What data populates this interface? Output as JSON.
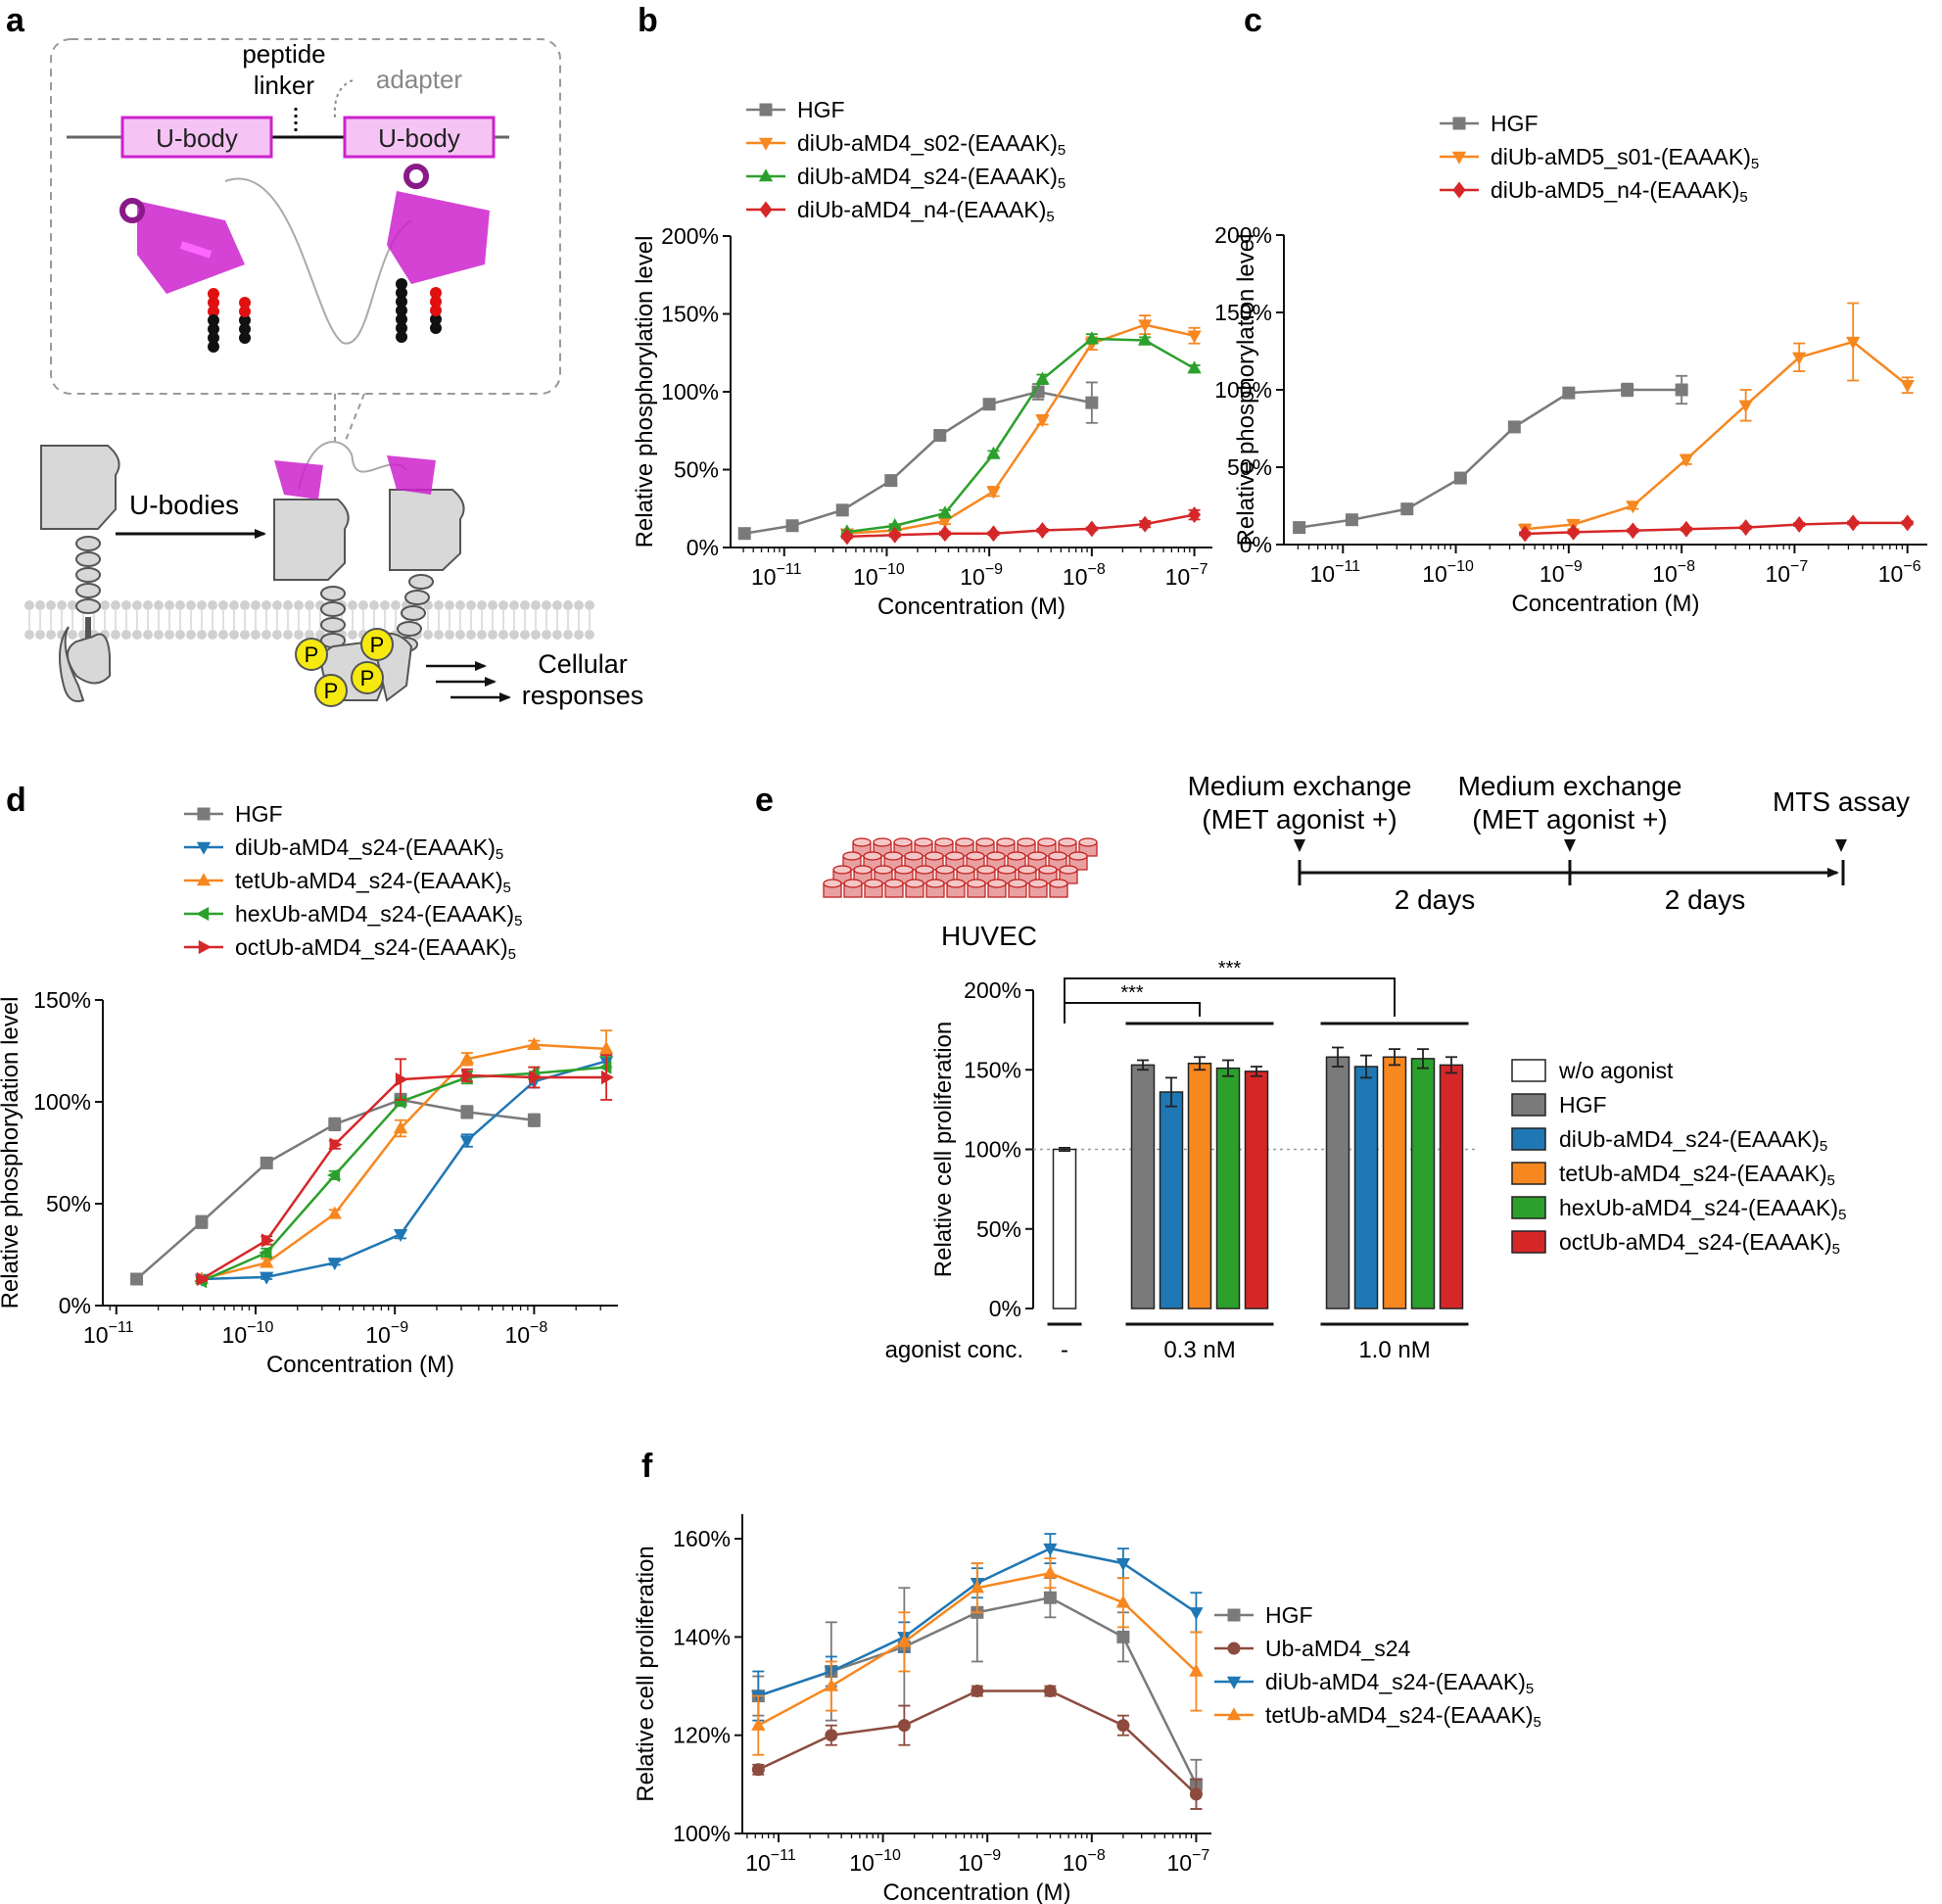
{
  "figure_labels": {
    "a": "a",
    "b": "b",
    "c": "c",
    "d": "d",
    "e": "e",
    "f": "f"
  },
  "colors": {
    "HGF": "#7a7a7a",
    "orange": "#f7871f",
    "green": "#2ca02c",
    "red": "#d62728",
    "blue": "#1f77b4",
    "brown": "#8c4b3e",
    "magenta": "#cc22cc",
    "phospho": "#f5e90f"
  },
  "panel_a": {
    "peptide_linker": "peptide linker",
    "adapter": "adapter",
    "ubody_1": "U-body",
    "ubody_2": "U-body",
    "arrow_label": "U-bodies",
    "phospho": [
      "P",
      "P",
      "P",
      "P"
    ],
    "cellular_responses": "Cellular responses"
  },
  "chart_data": [
    {
      "id": "b",
      "type": "line",
      "xlabel": "Concentration (M)",
      "ylabel": "Relative phosphorylation level",
      "xscale": "log",
      "xlim": [
        3e-12,
        1.5e-07
      ],
      "ylim": [
        0,
        200
      ],
      "yticks": [
        0,
        50,
        100,
        150,
        200
      ],
      "ytick_labels": [
        "0%",
        "50%",
        "100%",
        "150%",
        "200%"
      ],
      "xtick_exponents": [
        "-11",
        "-10",
        "-9",
        "-8",
        "-7"
      ],
      "legend": "top-left",
      "series": [
        {
          "name": "HGF",
          "color": "#7a7a7a",
          "marker": "square",
          "x": [
            4.1e-12,
            1.2e-11,
            3.7e-11,
            1.1e-10,
            3.3e-10,
            1e-09,
            3e-09,
            1e-08
          ],
          "y": [
            9,
            14,
            24,
            43,
            72,
            92,
            100,
            93
          ],
          "err": [
            1,
            1,
            2,
            2,
            2,
            2,
            5,
            13
          ]
        },
        {
          "name": "diUb-aMD4_s02-(EAAAK)5",
          "color": "#f7871f",
          "marker": "triangle-down",
          "x": [
            4.1e-11,
            1.2e-10,
            3.7e-10,
            1.1e-09,
            3.3e-09,
            1e-08,
            3.3e-08,
            1e-07
          ],
          "y": [
            9,
            11,
            17,
            36,
            82,
            131,
            143,
            136
          ],
          "err": [
            1,
            1,
            2,
            3,
            3,
            4,
            6,
            5
          ]
        },
        {
          "name": "diUb-aMD4_s24-(EAAAK)5",
          "color": "#2ca02c",
          "marker": "triangle-up",
          "x": [
            4.1e-11,
            1.2e-10,
            3.7e-10,
            1.1e-09,
            3.3e-09,
            1e-08,
            3.3e-08,
            1e-07
          ],
          "y": [
            10,
            14,
            22,
            60,
            108,
            134,
            133,
            115
          ],
          "err": [
            1,
            1,
            2,
            2,
            3,
            3,
            2,
            2
          ]
        },
        {
          "name": "diUb-aMD4_n4-(EAAAK)5",
          "color": "#d62728",
          "marker": "diamond",
          "x": [
            4.1e-11,
            1.2e-10,
            3.7e-10,
            1.1e-09,
            3.3e-09,
            1e-08,
            3.3e-08,
            1e-07
          ],
          "y": [
            7,
            8,
            9,
            9,
            11,
            12,
            15,
            21
          ],
          "err": [
            1,
            1,
            1,
            1,
            1,
            1,
            2,
            3
          ]
        }
      ]
    },
    {
      "id": "c",
      "type": "line",
      "xlabel": "Concentration (M)",
      "ylabel": "Relative phosphorylation level",
      "xscale": "log",
      "xlim": [
        3e-12,
        1.5e-06
      ],
      "ylim": [
        0,
        200
      ],
      "yticks": [
        0,
        50,
        100,
        150,
        200
      ],
      "ytick_labels": [
        "0%",
        "50%",
        "100%",
        "150%",
        "200%"
      ],
      "xtick_exponents": [
        "-11",
        "-10",
        "-9",
        "-8",
        "-7",
        "-6"
      ],
      "legend": "top-left",
      "series": [
        {
          "name": "HGF",
          "color": "#7a7a7a",
          "marker": "square",
          "x": [
            4.1e-12,
            1.2e-11,
            3.7e-11,
            1.1e-10,
            3.3e-10,
            1e-09,
            3.3e-09,
            1e-08
          ],
          "y": [
            11,
            16,
            23,
            43,
            76,
            98,
            100,
            100
          ],
          "err": [
            1,
            1,
            2,
            2,
            2,
            2,
            4,
            9
          ]
        },
        {
          "name": "diUb-aMD5_s01-(EAAAK)5",
          "color": "#f7871f",
          "marker": "triangle-down",
          "x": [
            4.1e-10,
            1.1e-09,
            3.7e-09,
            1.1e-08,
            3.7e-08,
            1.1e-07,
            3.3e-07,
            1e-06
          ],
          "y": [
            10,
            13,
            25,
            55,
            90,
            121,
            131,
            103
          ],
          "err": [
            3,
            3,
            2,
            3,
            10,
            9,
            25,
            5
          ]
        },
        {
          "name": "diUb-aMD5_n4-(EAAAK)5",
          "color": "#d62728",
          "marker": "diamond",
          "x": [
            4.1e-10,
            1.1e-09,
            3.7e-09,
            1.1e-08,
            3.7e-08,
            1.1e-07,
            3.3e-07,
            1e-06
          ],
          "y": [
            7,
            8,
            9,
            10,
            11,
            13,
            14,
            14
          ],
          "err": [
            1,
            1,
            1,
            1,
            1,
            1,
            1,
            1
          ]
        }
      ]
    },
    {
      "id": "d",
      "type": "line",
      "xlabel": "Concentration (M)",
      "ylabel": "Relative phosphorylation level",
      "xscale": "log",
      "xlim": [
        8e-12,
        4e-08
      ],
      "ylim": [
        0,
        150
      ],
      "yticks": [
        0,
        50,
        100,
        150
      ],
      "ytick_labels": [
        "0%",
        "50%",
        "100%",
        "150%"
      ],
      "xtick_exponents": [
        "-11",
        "-10",
        "-9",
        "-8"
      ],
      "legend": "top-left",
      "series": [
        {
          "name": "HGF",
          "color": "#7a7a7a",
          "marker": "square",
          "x": [
            1.4e-11,
            4.1e-11,
            1.2e-10,
            3.7e-10,
            1.1e-09,
            3.3e-09,
            1e-08
          ],
          "y": [
            13,
            41,
            70,
            89,
            101,
            95,
            91
          ],
          "err": [
            1,
            3,
            2,
            3,
            3,
            3,
            3
          ]
        },
        {
          "name": "diUb-aMD4_s24-(EAAAK)5",
          "color": "#1f77b4",
          "marker": "triangle-down",
          "x": [
            4.1e-11,
            1.2e-10,
            3.7e-10,
            1.1e-09,
            3.3e-09,
            1e-08,
            3.3e-08
          ],
          "y": [
            13,
            14,
            21,
            35,
            81,
            110,
            120
          ],
          "err": [
            1,
            1,
            1,
            2,
            3,
            3,
            3
          ]
        },
        {
          "name": "tetUb-aMD4_s24-(EAAAK)5",
          "color": "#f7871f",
          "marker": "triangle-up",
          "x": [
            4.1e-11,
            1.2e-10,
            3.7e-10,
            1.1e-09,
            3.3e-09,
            1e-08,
            3.3e-08
          ],
          "y": [
            13,
            21,
            45,
            87,
            121,
            128,
            126
          ],
          "err": [
            1,
            2,
            2,
            4,
            3,
            2,
            9
          ]
        },
        {
          "name": "hexUb-aMD4_s24-(EAAAK)5",
          "color": "#2ca02c",
          "marker": "triangle-left",
          "x": [
            4.1e-11,
            1.2e-10,
            3.7e-10,
            1.1e-09,
            3.3e-09,
            1e-08,
            3.3e-08
          ],
          "y": [
            12,
            26,
            64,
            100,
            112,
            114,
            117
          ],
          "err": [
            1,
            2,
            2,
            2,
            3,
            3,
            5
          ]
        },
        {
          "name": "octUb-aMD4_s24-(EAAAK)5",
          "color": "#d62728",
          "marker": "triangle-right",
          "x": [
            4.1e-11,
            1.2e-10,
            3.7e-10,
            1.1e-09,
            3.3e-09,
            1e-08,
            3.3e-08
          ],
          "y": [
            13,
            32,
            79,
            111,
            113,
            112,
            112
          ],
          "err": [
            1,
            2,
            2,
            10,
            3,
            5,
            11
          ]
        }
      ]
    },
    {
      "id": "e",
      "type": "bar",
      "ylabel": "Relative cell proliferation",
      "ylim": [
        0,
        200
      ],
      "yticks": [
        0,
        50,
        100,
        150,
        200
      ],
      "ytick_labels": [
        "0%",
        "50%",
        "100%",
        "150%",
        "200%"
      ],
      "group_axis_label": "agonist conc.",
      "categories": [
        "-",
        "0.3 nM",
        "1.0 nM"
      ],
      "significance": [
        "***",
        "***"
      ],
      "legend": "right",
      "series": [
        {
          "name": "w/o agonist",
          "color": "#ffffff",
          "values": [
            100,
            null,
            null
          ],
          "err": [
            1,
            null,
            null
          ]
        },
        {
          "name": "HGF",
          "color": "#7a7a7a",
          "values": [
            null,
            153,
            158
          ],
          "err": [
            null,
            3,
            6
          ]
        },
        {
          "name": "diUb-aMD4_s24-(EAAAK)5",
          "color": "#1f77b4",
          "values": [
            null,
            136,
            152
          ],
          "err": [
            null,
            9,
            7
          ]
        },
        {
          "name": "tetUb-aMD4_s24-(EAAAK)5",
          "color": "#f7871f",
          "values": [
            null,
            154,
            158
          ],
          "err": [
            null,
            4,
            5
          ]
        },
        {
          "name": "hexUb-aMD4_s24-(EAAAK)5",
          "color": "#2ca02c",
          "values": [
            null,
            151,
            157
          ],
          "err": [
            null,
            5,
            6
          ]
        },
        {
          "name": "octUb-aMD4_s24-(EAAAK)5",
          "color": "#d62728",
          "values": [
            null,
            149,
            153
          ],
          "err": [
            null,
            3,
            5
          ]
        }
      ]
    },
    {
      "id": "f",
      "type": "line",
      "xlabel": "Concentration (M)",
      "ylabel": "Relative cell proliferation",
      "xscale": "log",
      "xlim": [
        4.5e-12,
        1.4e-07
      ],
      "ylim": [
        100,
        165
      ],
      "yticks": [
        100,
        120,
        140,
        160
      ],
      "ytick_labels": [
        "100%",
        "120%",
        "140%",
        "160%"
      ],
      "xtick_exponents": [
        "-11",
        "-10",
        "-9",
        "-8",
        "-7"
      ],
      "legend": "right",
      "series": [
        {
          "name": "HGF",
          "color": "#7a7a7a",
          "marker": "square",
          "x": [
            6.4e-12,
            3.2e-11,
            1.6e-10,
            8e-10,
            4e-09,
            2e-08,
            1e-07
          ],
          "y": [
            128,
            133,
            138,
            145,
            148,
            140,
            110
          ],
          "err": [
            4,
            10,
            12,
            10,
            4,
            5,
            5
          ]
        },
        {
          "name": "Ub-aMD4_s24",
          "color": "#8c4b3e",
          "marker": "circle",
          "x": [
            6.4e-12,
            3.2e-11,
            1.6e-10,
            8e-10,
            4e-09,
            2e-08,
            1e-07
          ],
          "y": [
            113,
            120,
            122,
            129,
            129,
            122,
            108
          ],
          "err": [
            1,
            2,
            4,
            1,
            1,
            2,
            3
          ]
        },
        {
          "name": "diUb-aMD4_s24-(EAAAK)5",
          "color": "#1f77b4",
          "marker": "triangle-down",
          "x": [
            6.4e-12,
            3.2e-11,
            1.6e-10,
            8e-10,
            4e-09,
            2e-08,
            1e-07
          ],
          "y": [
            128,
            133,
            140,
            151,
            158,
            155,
            145
          ],
          "err": [
            5,
            3,
            3,
            3,
            3,
            3,
            4
          ]
        },
        {
          "name": "tetUb-aMD4_s24-(EAAAK)5",
          "color": "#f7871f",
          "marker": "triangle-up",
          "x": [
            6.4e-12,
            3.2e-11,
            1.6e-10,
            8e-10,
            4e-09,
            2e-08,
            1e-07
          ],
          "y": [
            122,
            130,
            139,
            150,
            153,
            147,
            133
          ],
          "err": [
            6,
            5,
            6,
            5,
            3,
            5,
            8
          ]
        }
      ]
    }
  ],
  "panel_e_header": {
    "cells": "HUVEC",
    "step1": [
      "Medium exchange",
      "(MET agonist +)"
    ],
    "step2": [
      "Medium exchange",
      "(MET agonist +)"
    ],
    "step3": "MTS assay",
    "interval1": "2 days",
    "interval2": "2 days"
  }
}
